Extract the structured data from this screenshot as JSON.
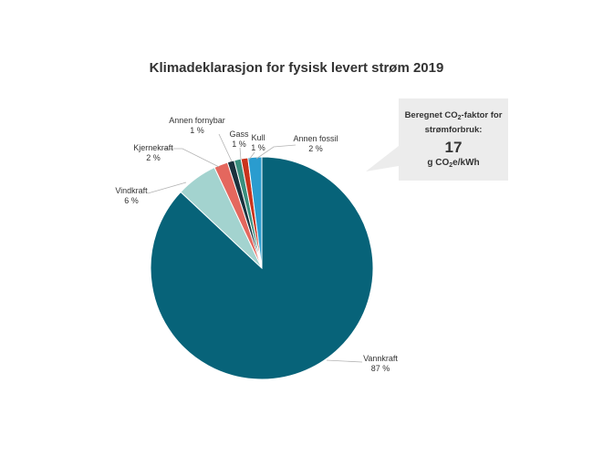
{
  "chart_data": {
    "type": "pie",
    "title": "Klimadeklarasjon for fysisk levert strøm 2019",
    "slices": [
      {
        "name": "Vannkraft",
        "label": "87 %",
        "value": 87,
        "color": "#076379"
      },
      {
        "name": "Vindkraft",
        "label": "6 %",
        "value": 6,
        "color": "#a3d3cf"
      },
      {
        "name": "Kjernekraft",
        "label": "2 %",
        "value": 2,
        "color": "#e4675e"
      },
      {
        "name": "Annen fornybar",
        "label": "1 %",
        "value": 1,
        "color": "#1a323e"
      },
      {
        "name": "Gass",
        "label": "1 %",
        "value": 1,
        "color": "#3a8f7e"
      },
      {
        "name": "Kull",
        "label": "1 %",
        "value": 1,
        "color": "#c9341d"
      },
      {
        "name": "Annen fossil",
        "label": "2 %",
        "value": 2,
        "color": "#2a9ccf"
      }
    ]
  },
  "callout": {
    "line1_pre": "Beregnet CO",
    "line1_sub": "2",
    "line1_post": "-faktor for",
    "line2": "strømforbruk:",
    "value": "17",
    "unit_pre": "g CO",
    "unit_sub": "2",
    "unit_post": "e/kWh"
  }
}
